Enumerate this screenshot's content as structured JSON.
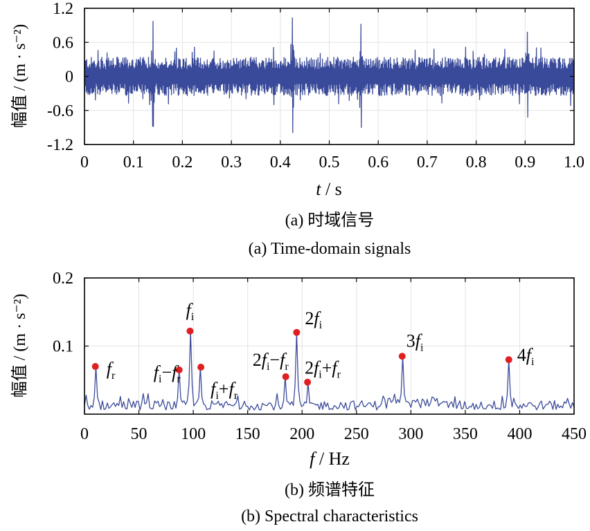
{
  "chart_data": [
    {
      "type": "line",
      "ylabel": "幅值 / (m · s⁻²)",
      "xlabel_var": "t",
      "xlabel_unit": " / s",
      "xlim": [
        0,
        1.0
      ],
      "ylim": [
        -1.2,
        1.2
      ],
      "xticks": [
        0,
        0.1,
        0.2,
        0.3,
        0.4,
        0.5,
        0.6,
        0.7,
        0.8,
        0.9,
        1.0
      ],
      "xtick_labels": [
        "0",
        "0.1",
        "0.2",
        "0.3",
        "0.4",
        "0.5",
        "0.6",
        "0.7",
        "0.8",
        "0.9",
        "1.0"
      ],
      "yticks": [
        -1.2,
        -0.6,
        0,
        0.6,
        1.2
      ],
      "ytick_labels": [
        "-1.2",
        "-0.6",
        "0",
        "0.6",
        "1.2"
      ],
      "caption_cn": "(a) 时域信号",
      "caption_en": "(a) Time-domain signals",
      "impulses": [
        {
          "t": 0.14,
          "up": 0.97,
          "down": -0.88
        },
        {
          "t": 0.425,
          "up": 1.03,
          "down": -0.99
        },
        {
          "t": 0.565,
          "up": 0.92,
          "down": -0.9
        },
        {
          "t": 0.905,
          "up": 0.78,
          "down": -0.72
        }
      ]
    },
    {
      "type": "line",
      "ylabel": "幅值 / (m · s⁻²)",
      "xlabel_var": "f",
      "xlabel_unit": " / Hz",
      "xlim": [
        0,
        450
      ],
      "ylim": [
        0,
        0.2
      ],
      "xticks": [
        0,
        50,
        100,
        150,
        200,
        250,
        300,
        350,
        400,
        450
      ],
      "xtick_labels": [
        "0",
        "50",
        "100",
        "150",
        "200",
        "250",
        "300",
        "350",
        "400",
        "450"
      ],
      "yticks": [
        0.1,
        0.2
      ],
      "ytick_labels": [
        "0.1",
        "0.2"
      ],
      "caption_cn": "(b) 频谱特征",
      "caption_en": "(b) Spectral characteristics",
      "peaks": [
        {
          "freq": 10,
          "amp": 0.07,
          "label": "fr"
        },
        {
          "freq": 87,
          "amp": 0.065,
          "label": "fi−fr"
        },
        {
          "freq": 97,
          "amp": 0.122,
          "label": "fi"
        },
        {
          "freq": 107,
          "amp": 0.069,
          "label": "fi+fr"
        },
        {
          "freq": 185,
          "amp": 0.055,
          "label": "2fi−fr"
        },
        {
          "freq": 195,
          "amp": 0.12,
          "label": "2fi"
        },
        {
          "freq": 205,
          "amp": 0.047,
          "label": "2fi+fr"
        },
        {
          "freq": 292,
          "amp": 0.085,
          "label": "3fi"
        },
        {
          "freq": 390,
          "amp": 0.08,
          "label": "4fi"
        }
      ]
    }
  ]
}
